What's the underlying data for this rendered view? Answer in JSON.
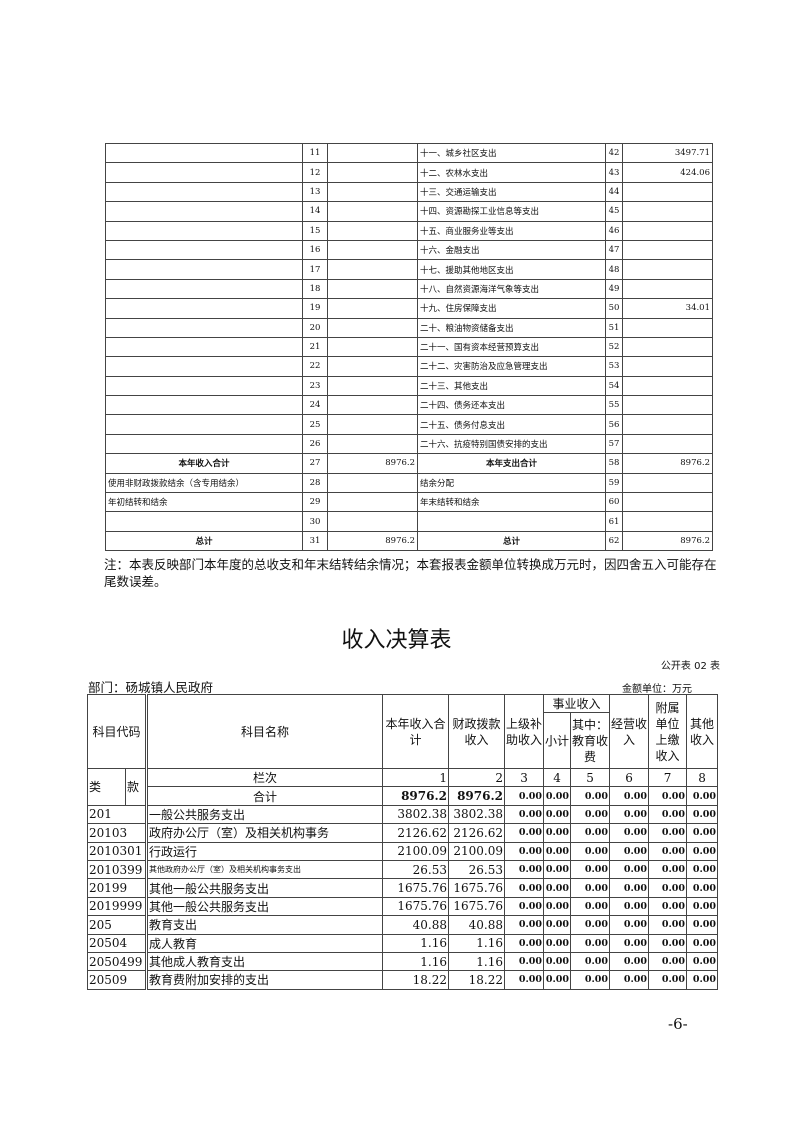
{
  "summary_table": {
    "rows": [
      {
        "l": "",
        "ln": "11",
        "lv": "",
        "r": "十一、城乡社区支出",
        "rn": "42",
        "rv": "3497.71"
      },
      {
        "l": "",
        "ln": "12",
        "lv": "",
        "r": "十二、农林水支出",
        "rn": "43",
        "rv": "424.06"
      },
      {
        "l": "",
        "ln": "13",
        "lv": "",
        "r": "十三、交通运输支出",
        "rn": "44",
        "rv": ""
      },
      {
        "l": "",
        "ln": "14",
        "lv": "",
        "r": "十四、资源勘探工业信息等支出",
        "rn": "45",
        "rv": ""
      },
      {
        "l": "",
        "ln": "15",
        "lv": "",
        "r": "十五、商业服务业等支出",
        "rn": "46",
        "rv": ""
      },
      {
        "l": "",
        "ln": "16",
        "lv": "",
        "r": "十六、金融支出",
        "rn": "47",
        "rv": ""
      },
      {
        "l": "",
        "ln": "17",
        "lv": "",
        "r": "十七、援助其他地区支出",
        "rn": "48",
        "rv": ""
      },
      {
        "l": "",
        "ln": "18",
        "lv": "",
        "r": "十八、自然资源海洋气象等支出",
        "rn": "49",
        "rv": ""
      },
      {
        "l": "",
        "ln": "19",
        "lv": "",
        "r": "十九、住房保障支出",
        "rn": "50",
        "rv": "34.01"
      },
      {
        "l": "",
        "ln": "20",
        "lv": "",
        "r": "二十、粮油物资储备支出",
        "rn": "51",
        "rv": ""
      },
      {
        "l": "",
        "ln": "21",
        "lv": "",
        "r": "二十一、国有资本经营预算支出",
        "rn": "52",
        "rv": ""
      },
      {
        "l": "",
        "ln": "22",
        "lv": "",
        "r": "二十二、灾害防治及应急管理支出",
        "rn": "53",
        "rv": ""
      },
      {
        "l": "",
        "ln": "23",
        "lv": "",
        "r": "二十三、其他支出",
        "rn": "54",
        "rv": ""
      },
      {
        "l": "",
        "ln": "24",
        "lv": "",
        "r": "二十四、债务还本支出",
        "rn": "55",
        "rv": ""
      },
      {
        "l": "",
        "ln": "25",
        "lv": "",
        "r": "二十五、债务付息支出",
        "rn": "56",
        "rv": ""
      },
      {
        "l": "",
        "ln": "26",
        "lv": "",
        "r": "二十六、抗疫特别国债安排的支出",
        "rn": "57",
        "rv": ""
      },
      {
        "l": "本年收入合计",
        "ln": "27",
        "lv": "8976.2",
        "r": "本年支出合计",
        "rn": "58",
        "rv": "8976.2",
        "bold": true
      },
      {
        "l": "使用非财政拨款结余（含专用结余）",
        "ln": "28",
        "lv": "",
        "r": "结余分配",
        "rn": "59",
        "rv": ""
      },
      {
        "l": "年初结转和结余",
        "ln": "29",
        "lv": "",
        "r": "年末结转和结余",
        "rn": "60",
        "rv": ""
      },
      {
        "l": "",
        "ln": "30",
        "lv": "",
        "r": "",
        "rn": "61",
        "rv": ""
      },
      {
        "l": "总计",
        "ln": "31",
        "lv": "8976.2",
        "r": "总计",
        "rn": "62",
        "rv": "8976.2",
        "bold": true
      }
    ]
  },
  "note": "注：本表反映部门本年度的总收支和年末结转结余情况；本套报表金额单位转换成万元时，因四舍五入可能存在尾数误差。",
  "title": "收入决算表",
  "form_no": "公开表 02 表",
  "department": "部门：砀城镇人民政府",
  "unit": "金额单位：万元",
  "income_table": {
    "headers": {
      "code": "科目代码",
      "name": "科目名称",
      "total": "本年收入合计",
      "fiscal": "财政拨款收入",
      "superior": "上级补助收入",
      "business": "事业收入",
      "subtotal": "小计",
      "edu": "其中：教育收费",
      "operating": "经营收入",
      "affiliated": "附属单位上缴收入",
      "other": "其他收入",
      "lei": "类",
      "kuan": "款",
      "column_no": "栏次"
    },
    "column_numbers": [
      "1",
      "2",
      "3",
      "4",
      "5",
      "6",
      "7",
      "8"
    ],
    "total_row": {
      "label": "合计",
      "values": [
        "8976.2",
        "8976.2",
        "0.00",
        "0.00",
        "0.00",
        "0.00",
        "0.00",
        "0.00"
      ]
    },
    "rows": [
      {
        "code": "201",
        "name": "一般公共服务支出",
        "values": [
          "3802.38",
          "3802.38",
          "0.00",
          "0.00",
          "0.00",
          "0.00",
          "0.00",
          "0.00"
        ]
      },
      {
        "code": "20103",
        "name": "政府办公厅（室）及相关机构事务",
        "values": [
          "2126.62",
          "2126.62",
          "0.00",
          "0.00",
          "0.00",
          "0.00",
          "0.00",
          "0.00"
        ]
      },
      {
        "code": "2010301",
        "name": "行政运行",
        "values": [
          "2100.09",
          "2100.09",
          "0.00",
          "0.00",
          "0.00",
          "0.00",
          "0.00",
          "0.00"
        ]
      },
      {
        "code": "2010399",
        "name": "其他政府办公厅（室）及相关机构事务支出",
        "small": true,
        "values": [
          "26.53",
          "26.53",
          "0.00",
          "0.00",
          "0.00",
          "0.00",
          "0.00",
          "0.00"
        ]
      },
      {
        "code": "20199",
        "name": "其他一般公共服务支出",
        "values": [
          "1675.76",
          "1675.76",
          "0.00",
          "0.00",
          "0.00",
          "0.00",
          "0.00",
          "0.00"
        ]
      },
      {
        "code": "2019999",
        "name": "其他一般公共服务支出",
        "values": [
          "1675.76",
          "1675.76",
          "0.00",
          "0.00",
          "0.00",
          "0.00",
          "0.00",
          "0.00"
        ]
      },
      {
        "code": "205",
        "name": "教育支出",
        "values": [
          "40.88",
          "40.88",
          "0.00",
          "0.00",
          "0.00",
          "0.00",
          "0.00",
          "0.00"
        ]
      },
      {
        "code": "20504",
        "name": "成人教育",
        "values": [
          "1.16",
          "1.16",
          "0.00",
          "0.00",
          "0.00",
          "0.00",
          "0.00",
          "0.00"
        ]
      },
      {
        "code": "2050499",
        "name": "其他成人教育支出",
        "values": [
          "1.16",
          "1.16",
          "0.00",
          "0.00",
          "0.00",
          "0.00",
          "0.00",
          "0.00"
        ]
      },
      {
        "code": "20509",
        "name": "教育费附加安排的支出",
        "values": [
          "18.22",
          "18.22",
          "0.00",
          "0.00",
          "0.00",
          "0.00",
          "0.00",
          "0.00"
        ]
      }
    ]
  },
  "page_number": "-6-"
}
